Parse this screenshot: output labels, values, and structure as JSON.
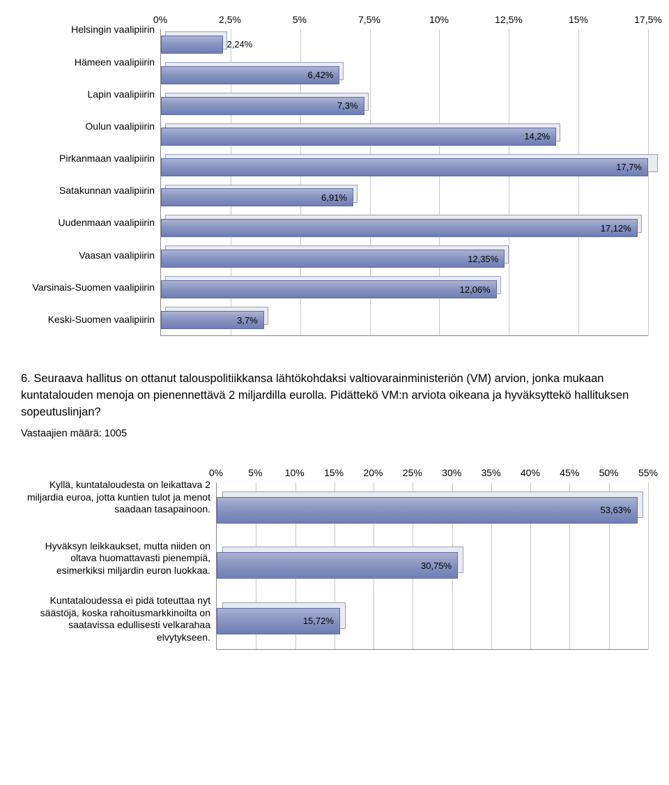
{
  "chart1": {
    "type": "bar-horizontal",
    "x_ticks": [
      "0%",
      "2,5%",
      "5%",
      "7,5%",
      "10%",
      "12,5%",
      "15%",
      "17,5%"
    ],
    "x_tick_positions_pct": [
      0,
      14.2857,
      28.5714,
      42.857,
      57.143,
      71.4286,
      85.7143,
      100
    ],
    "x_max": 17.5,
    "bar_color": "#8592c0",
    "bar_border": "#5b6aa3",
    "shadow_color": "#e9ebf2",
    "grid_color": "#c9c9c9",
    "label_fontsize": 14,
    "labels": [
      "Helsingin vaalipiirin",
      "Hämeen vaalipiirin",
      "Lapin vaalipiirin",
      "Oulun vaalipiirin",
      "Pirkanmaan vaalipiirin",
      "Satakunnan vaalipiirin",
      "Uudenmaan vaalipiirin",
      "Vaasan vaalipiirin",
      "Varsinais-Suomen vaalipiirin",
      "Keski-Suomen vaalipiirin"
    ],
    "values": [
      2.24,
      6.42,
      7.3,
      14.2,
      17.7,
      6.91,
      17.12,
      12.35,
      12.06,
      3.7
    ],
    "value_labels": [
      "2,24%",
      "6,42%",
      "7,3%",
      "14,2%",
      "17,7%",
      "6,91%",
      "17,12%",
      "12,35%",
      "12,06%",
      "3,7%"
    ]
  },
  "question": {
    "number": "6.",
    "text": "Seuraava hallitus on ottanut talouspolitiikkansa lähtökohdaksi valtiovarainministeriön (VM) arvion, jonka mukaan kuntatalouden menoja on pienennettävä 2 miljardilla eurolla. Pidättekö VM:n arviota oikeana ja hyväksyttekö hallituksen sopeutuslinjan?"
  },
  "meta": {
    "label": "Vastaajien määrä:",
    "value": "1005"
  },
  "chart2": {
    "type": "bar-horizontal",
    "x_ticks": [
      "0%",
      "5%",
      "10%",
      "15%",
      "20%",
      "25%",
      "30%",
      "35%",
      "40%",
      "45%",
      "50%",
      "55%"
    ],
    "x_tick_positions_pct": [
      0,
      9.0909,
      18.1818,
      27.2727,
      36.3636,
      45.4545,
      54.5454,
      63.6363,
      72.7272,
      81.8181,
      90.909,
      100
    ],
    "x_max": 55,
    "bar_color": "#8592c0",
    "bar_border": "#5b6aa3",
    "shadow_color": "#e9ebf2",
    "grid_color": "#c9c9c9",
    "label_fontsize": 14,
    "labels": [
      "Kyllä, kuntataloudesta on leikattava 2 miljardia euroa, jotta kuntien tulot ja menot saadaan tasapainoon.",
      "Hyväksyn leikkaukset, mutta niiden on oltava huomattavasti pienempiä, esimerkiksi miljardin euron luokkaa.",
      "Kuntataloudessa ei pidä toteuttaa nyt säästöjä, koska rahoitusmarkkinoilta on saatavissa edullisesti velkarahaa elvytykseen."
    ],
    "values": [
      53.63,
      30.75,
      15.72
    ],
    "value_labels": [
      "53,63%",
      "30,75%",
      "15,72%"
    ]
  }
}
